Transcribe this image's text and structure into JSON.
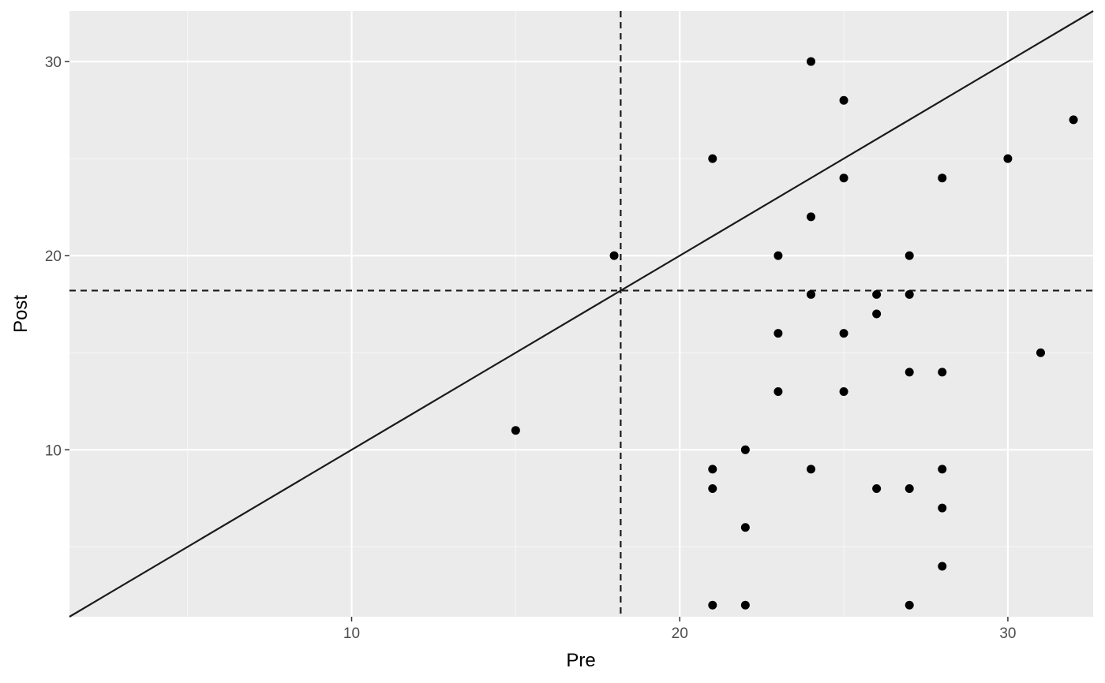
{
  "chart_data": {
    "type": "scatter",
    "title": "",
    "xlabel": "Pre",
    "ylabel": "Post",
    "xlim": [
      1.4,
      32.6
    ],
    "ylim": [
      1.4,
      32.6
    ],
    "x_ticks": [
      10,
      20,
      30
    ],
    "y_ticks": [
      10,
      20,
      30
    ],
    "x_tick_labels": [
      "10",
      "20",
      "30"
    ],
    "y_tick_labels": [
      "10",
      "20",
      "30"
    ],
    "grid": true,
    "legend": "none",
    "reference_lines": {
      "identity_line": {
        "slope": 1,
        "intercept": 0
      },
      "vline_x": 18.2,
      "hline_y": 18.2
    },
    "points": [
      {
        "x": 15,
        "y": 11
      },
      {
        "x": 18,
        "y": 20
      },
      {
        "x": 21,
        "y": 25
      },
      {
        "x": 21,
        "y": 9
      },
      {
        "x": 21,
        "y": 8
      },
      {
        "x": 21,
        "y": 2
      },
      {
        "x": 22,
        "y": 10
      },
      {
        "x": 22,
        "y": 6
      },
      {
        "x": 22,
        "y": 2
      },
      {
        "x": 23,
        "y": 20
      },
      {
        "x": 23,
        "y": 16
      },
      {
        "x": 23,
        "y": 13
      },
      {
        "x": 24,
        "y": 30
      },
      {
        "x": 24,
        "y": 22
      },
      {
        "x": 24,
        "y": 18
      },
      {
        "x": 24,
        "y": 9
      },
      {
        "x": 25,
        "y": 28
      },
      {
        "x": 25,
        "y": 24
      },
      {
        "x": 25,
        "y": 16
      },
      {
        "x": 25,
        "y": 13
      },
      {
        "x": 26,
        "y": 18
      },
      {
        "x": 26,
        "y": 17
      },
      {
        "x": 26,
        "y": 8
      },
      {
        "x": 27,
        "y": 20
      },
      {
        "x": 27,
        "y": 18
      },
      {
        "x": 27,
        "y": 14
      },
      {
        "x": 27,
        "y": 8
      },
      {
        "x": 27,
        "y": 2
      },
      {
        "x": 28,
        "y": 24
      },
      {
        "x": 28,
        "y": 14
      },
      {
        "x": 28,
        "y": 9
      },
      {
        "x": 28,
        "y": 7
      },
      {
        "x": 28,
        "y": 4
      },
      {
        "x": 30,
        "y": 25
      },
      {
        "x": 31,
        "y": 15
      },
      {
        "x": 32,
        "y": 27
      }
    ],
    "colors": {
      "panel_background": "#ebebeb",
      "grid_major": "#ffffff",
      "grid_minor": "#f5f5f5",
      "point": "#000000",
      "line": "#1a1a1a"
    }
  }
}
